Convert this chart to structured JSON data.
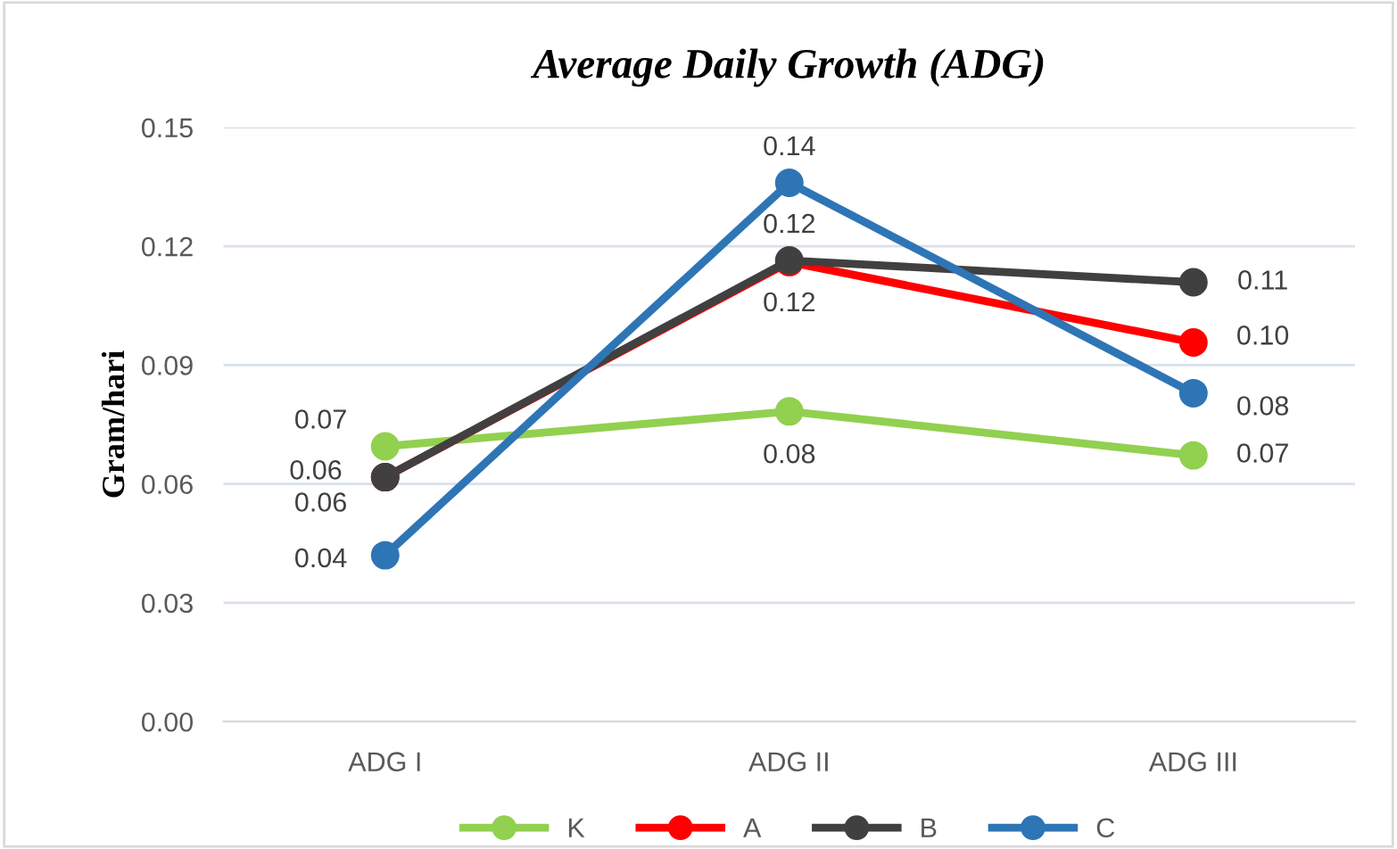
{
  "chart_data": {
    "type": "line",
    "title": "Average Daily Growth (ADG)",
    "ylabel": "Gram/hari",
    "categories": [
      "ADG I",
      "ADG II",
      "ADG III"
    ],
    "series": [
      {
        "name": "K",
        "color": "#92d050",
        "values": [
          0.0695,
          0.0783,
          0.0672
        ],
        "value_labels": [
          "0.07",
          "0.08",
          "0.07"
        ]
      },
      {
        "name": "A",
        "color": "#ff0000",
        "values": [
          0.0617,
          0.116,
          0.0957
        ],
        "value_labels": [
          "0.06",
          "0.12",
          "0.10"
        ]
      },
      {
        "name": "B",
        "color": "#404040",
        "values": [
          0.0617,
          0.1164,
          0.1109
        ],
        "value_labels": [
          "0.06",
          "0.12",
          "0.11"
        ]
      },
      {
        "name": "C",
        "color": "#2e75b6",
        "values": [
          0.042,
          0.136,
          0.0829
        ],
        "value_labels": [
          "0.04",
          "0.14",
          "0.08"
        ]
      }
    ],
    "ylim": [
      0,
      0.15
    ],
    "yticks": [
      {
        "value": 0,
        "label": "0.00"
      },
      {
        "value": 0.03,
        "label": "0.03"
      },
      {
        "value": 0.06,
        "label": "0.06"
      },
      {
        "value": 0.09,
        "label": "0.09"
      },
      {
        "value": 0.12,
        "label": "0.12"
      },
      {
        "value": 0.15,
        "label": "0.15"
      }
    ],
    "grid": "y",
    "legend": "bottom",
    "marker": "circle",
    "line_style": "solid"
  }
}
